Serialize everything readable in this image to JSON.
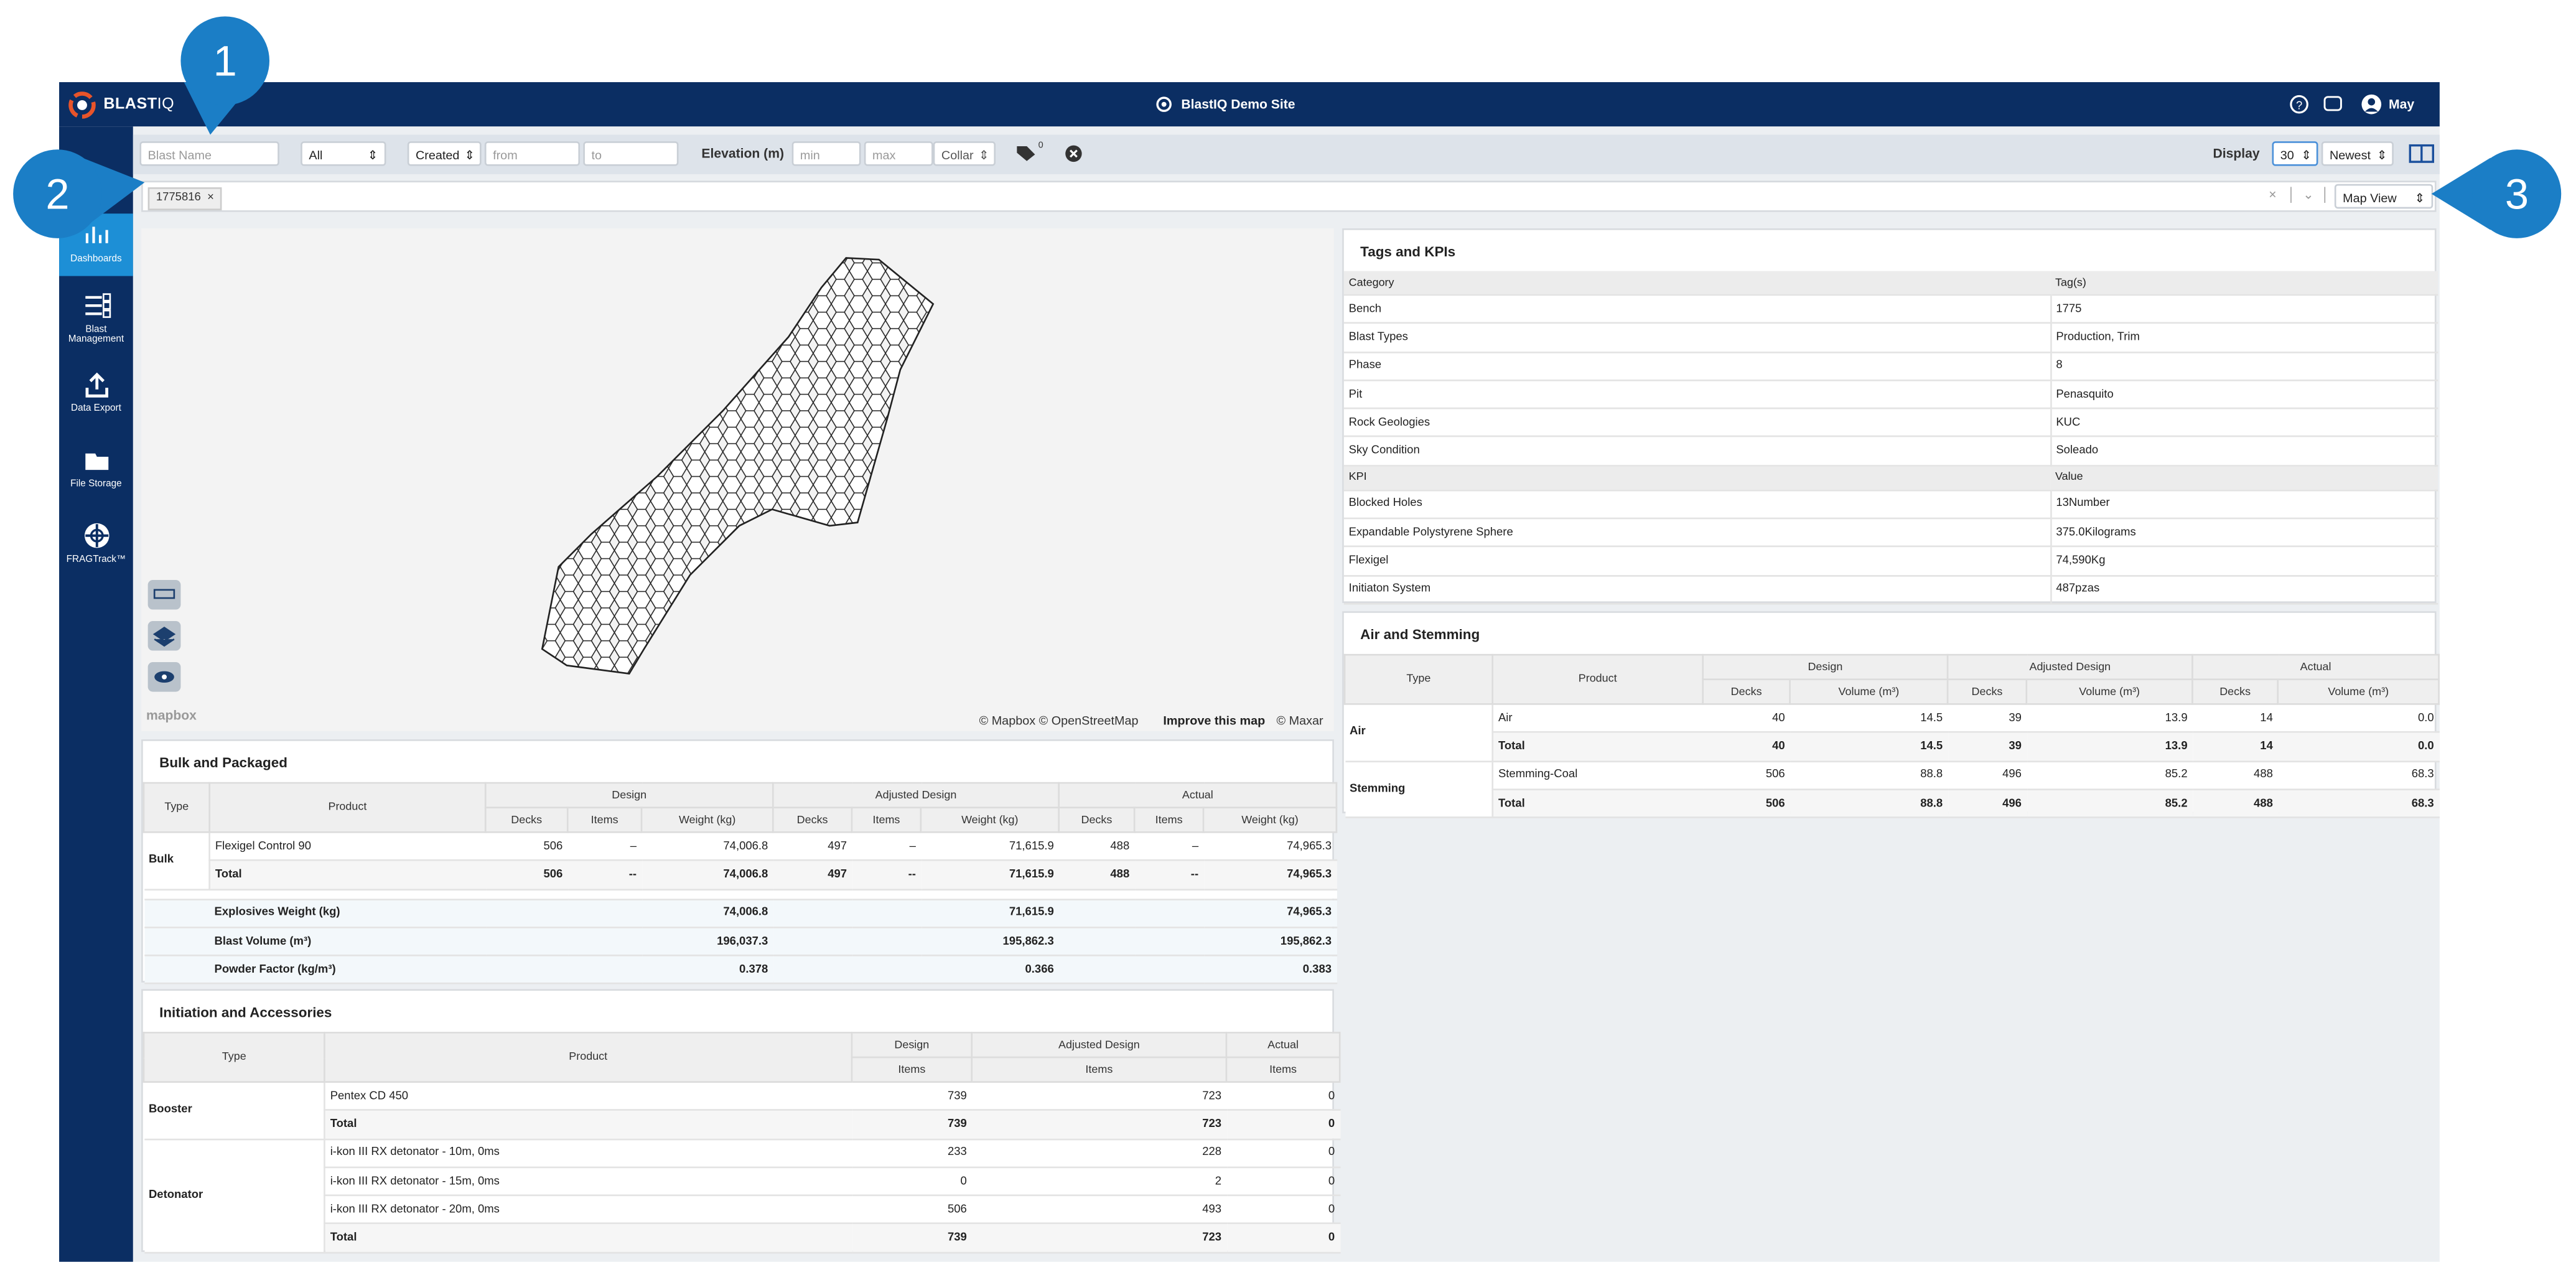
{
  "annotations": [
    "1",
    "2",
    "3"
  ],
  "header": {
    "logo": "BLAST",
    "logo_suffix": "IQ",
    "site": "BlastIQ Demo Site",
    "user": "May"
  },
  "sidebar": [
    "Dashboards",
    "Blast Management",
    "Data Export",
    "File Storage",
    "FRAGTrack™"
  ],
  "filters": {
    "blast_name": "Blast Name",
    "status": "All",
    "date_field": "Created",
    "from": "from",
    "to": "to",
    "elevation_label": "Elevation (m)",
    "min": "min",
    "max": "max",
    "collar": "Collar",
    "tag_count": "0",
    "display_label": "Display",
    "display_count": "30",
    "sort": "Newest"
  },
  "selection": {
    "chip": "1775816",
    "view": "Map View"
  },
  "map": {
    "logo": "mapbox",
    "attribution": "© Mapbox © OpenStreetMap",
    "improve": "Improve this map",
    "maxar": "© Maxar"
  },
  "bulk": {
    "title": "Bulk and Packaged",
    "columns": [
      "Type",
      "Product"
    ],
    "groups": [
      "Design",
      "Adjusted Design",
      "Actual"
    ],
    "subcolumns": [
      "Decks",
      "Items",
      "Weight (kg)"
    ],
    "sections": [
      {
        "type": "Bulk",
        "rows": [
          {
            "product": "Flexigel Control 90",
            "cells": [
              "506",
              "–",
              "74,006.8",
              "497",
              "–",
              "71,615.9",
              "488",
              "–",
              "74,965.3"
            ]
          },
          {
            "product": "Total",
            "cells": [
              "506",
              "--",
              "74,006.8",
              "497",
              "--",
              "71,615.9",
              "488",
              "--",
              "74,965.3"
            ]
          }
        ]
      }
    ],
    "summary": [
      {
        "label": "Explosives Weight (kg)",
        "values": [
          "74,006.8",
          "71,615.9",
          "74,965.3"
        ]
      },
      {
        "label": "Blast Volume (m³)",
        "values": [
          "196,037.3",
          "195,862.3",
          "195,862.3"
        ]
      },
      {
        "label": "Powder Factor (kg/m³)",
        "values": [
          "0.378",
          "0.366",
          "0.383"
        ]
      }
    ]
  },
  "initiation": {
    "title": "Initiation and Accessories",
    "columns": [
      "Type",
      "Product"
    ],
    "groups": [
      "Design",
      "Adjusted Design",
      "Actual"
    ],
    "subcolumns": [
      "Items"
    ],
    "sections": [
      {
        "type": "Booster",
        "rows": [
          {
            "product": "Pentex CD 450",
            "cells": [
              "739",
              "723",
              "0"
            ]
          },
          {
            "product": "Total",
            "cells": [
              "739",
              "723",
              "0"
            ]
          }
        ]
      },
      {
        "type": "Detonator",
        "rows": [
          {
            "product": "i-kon III RX detonator - 10m, 0ms",
            "cells": [
              "233",
              "228",
              "0"
            ]
          },
          {
            "product": "i-kon III RX detonator - 15m, 0ms",
            "cells": [
              "0",
              "2",
              "0"
            ]
          },
          {
            "product": "i-kon III RX detonator - 20m, 0ms",
            "cells": [
              "506",
              "493",
              "0"
            ]
          },
          {
            "product": "Total",
            "cells": [
              "739",
              "723",
              "0"
            ]
          }
        ]
      }
    ]
  },
  "tags": {
    "title": "Tags and KPIs",
    "sections": [
      {
        "header": [
          "Category",
          "Tag(s)"
        ],
        "rows": [
          [
            "Bench",
            "1775"
          ],
          [
            "Blast Types",
            "Production, Trim"
          ],
          [
            "Phase",
            "8"
          ],
          [
            "Pit",
            "Penasquito"
          ],
          [
            "Rock Geologies",
            "KUC"
          ],
          [
            "Sky Condition",
            "Soleado"
          ]
        ]
      },
      {
        "header": [
          "KPI",
          "Value"
        ],
        "rows": [
          [
            "Blocked Holes",
            "13Number"
          ],
          [
            "Expandable Polystyrene Sphere",
            "375.0Kilograms"
          ],
          [
            "Flexigel",
            "74,590Kg"
          ],
          [
            "Initiaton System",
            "487pzas"
          ]
        ]
      }
    ]
  },
  "air": {
    "title": "Air and Stemming",
    "columns": [
      "Type",
      "Product"
    ],
    "groups": [
      "Design",
      "Adjusted Design",
      "Actual"
    ],
    "subcolumns": [
      "Decks",
      "Volume (m³)"
    ],
    "sections": [
      {
        "type": "Air",
        "rows": [
          {
            "product": "Air",
            "cells": [
              "40",
              "14.5",
              "39",
              "13.9",
              "14",
              "0.0"
            ]
          },
          {
            "product": "Total",
            "cells": [
              "40",
              "14.5",
              "39",
              "13.9",
              "14",
              "0.0"
            ]
          }
        ]
      },
      {
        "type": "Stemming",
        "rows": [
          {
            "product": "Stemming-Coal",
            "cells": [
              "506",
              "88.8",
              "496",
              "85.2",
              "488",
              "68.3"
            ]
          },
          {
            "product": "Total",
            "cells": [
              "506",
              "88.8",
              "496",
              "85.2",
              "488",
              "68.3"
            ]
          }
        ]
      }
    ]
  }
}
